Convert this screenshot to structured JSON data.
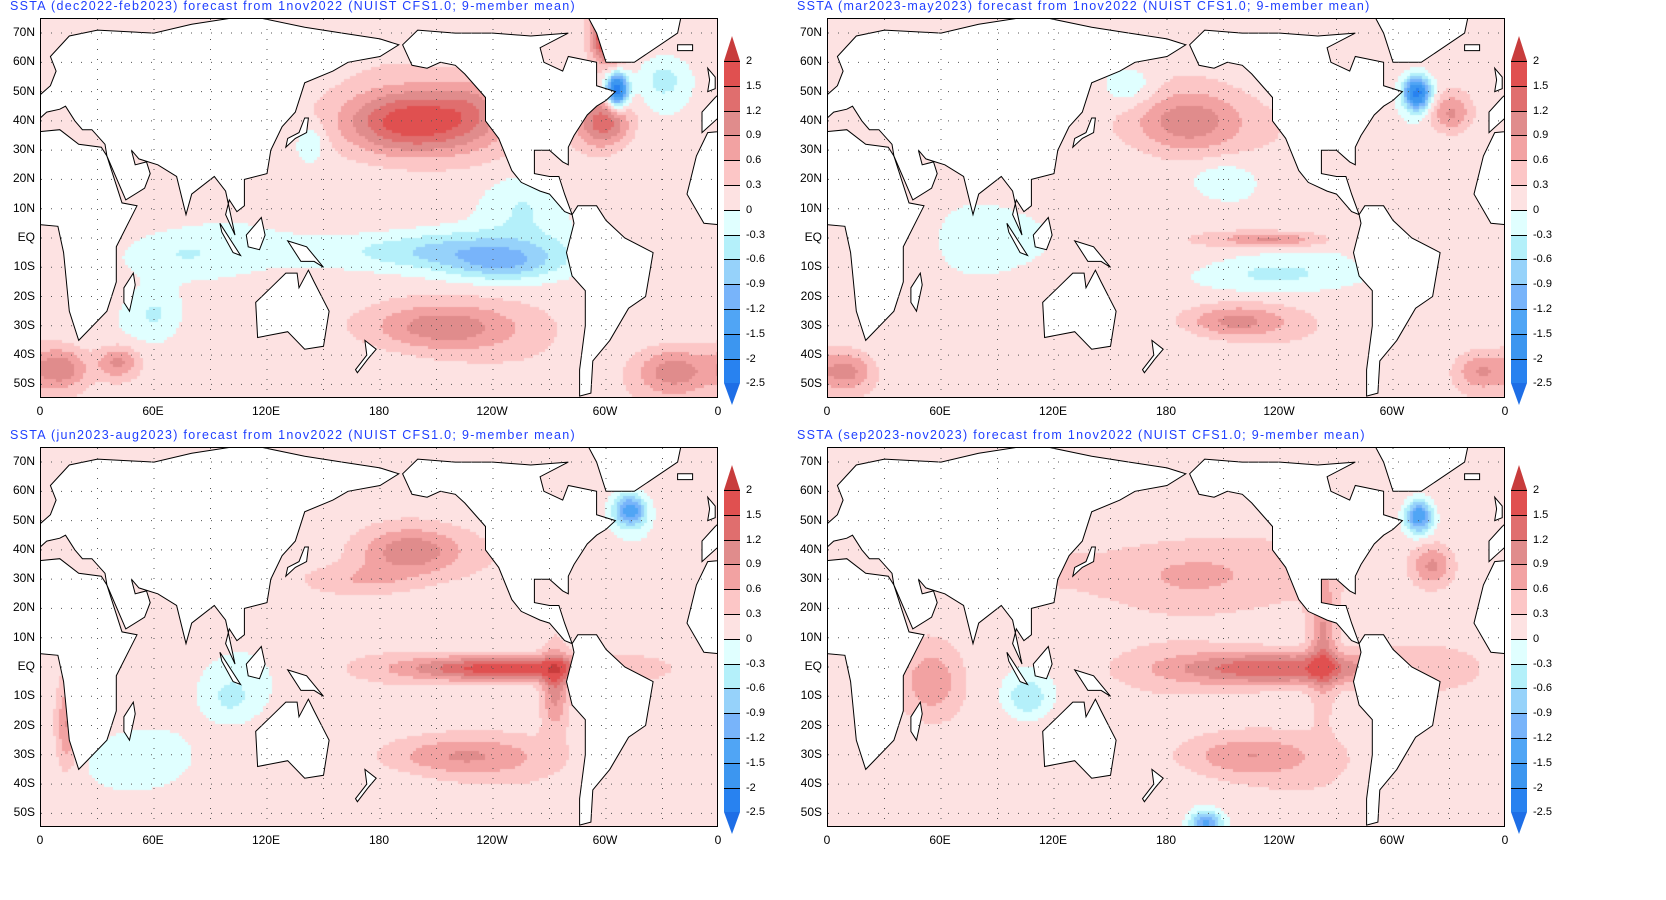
{
  "figure": {
    "panels": [
      {
        "title": "SSTA (dec2022-feb2023) forecast from 1nov2022 (NUIST CFS1.0; 9-member mean)",
        "base": 0.15,
        "anomaly_centers": [
          {
            "lon": 195,
            "lat": 40,
            "lon_spread": 25,
            "lat_spread": 8,
            "value": 1.7
          },
          {
            "lon": 228,
            "lat": 45,
            "lon_spread": 14,
            "lat_spread": 8,
            "value": 0.5
          },
          {
            "lon": 215,
            "lat": -4,
            "lon_spread": 45,
            "lat_spread": 5,
            "value": -0.9
          },
          {
            "lon": 245,
            "lat": -9,
            "lon_spread": 20,
            "lat_spread": 4,
            "value": -0.6
          },
          {
            "lon": 210,
            "lat": -30,
            "lon_spread": 28,
            "lat_spread": 6,
            "value": 1.0
          },
          {
            "lon": 298,
            "lat": 40,
            "lon_spread": 10,
            "lat_spread": 6,
            "value": 1.3
          },
          {
            "lon": 305,
            "lat": 51,
            "lon_spread": 4,
            "lat_spread": 4,
            "value": -2.6
          },
          {
            "lon": 301,
            "lat": 70,
            "lon_spread": 6,
            "lat_spread": 6,
            "value": 2.4
          },
          {
            "lon": 70,
            "lat": -5,
            "lon_spread": 25,
            "lat_spread": 6,
            "value": -0.45
          },
          {
            "lon": 60,
            "lat": -25,
            "lon_spread": 10,
            "lat_spread": 6,
            "value": -0.45
          },
          {
            "lon": 10,
            "lat": -44,
            "lon_spread": 10,
            "lat_spread": 5,
            "value": 1.0
          },
          {
            "lon": 40,
            "lat": -42,
            "lon_spread": 8,
            "lat_spread": 4,
            "value": 0.9
          },
          {
            "lon": 335,
            "lat": -45,
            "lon_spread": 15,
            "lat_spread": 6,
            "value": 1.0
          },
          {
            "lon": 142,
            "lat": 33,
            "lon_spread": 6,
            "lat_spread": 5,
            "value": -0.5
          },
          {
            "lon": 255,
            "lat": 12,
            "lon_spread": 15,
            "lat_spread": 8,
            "value": -0.4
          },
          {
            "lon": 330,
            "lat": 55,
            "lon_spread": 10,
            "lat_spread": 6,
            "value": -0.6
          }
        ]
      },
      {
        "title": "SSTA (mar2023-may2023) forecast from 1nov2022 (NUIST CFS1.0; 9-member mean)",
        "base": 0.12,
        "anomaly_centers": [
          {
            "lon": 190,
            "lat": 40,
            "lon_spread": 22,
            "lat_spread": 8,
            "value": 1.1
          },
          {
            "lon": 312,
            "lat": 50,
            "lon_spread": 5,
            "lat_spread": 4,
            "value": -2.3
          },
          {
            "lon": 330,
            "lat": 43,
            "lon_spread": 8,
            "lat_spread": 5,
            "value": 0.9
          },
          {
            "lon": 215,
            "lat": -28,
            "lon_spread": 20,
            "lat_spread": 4,
            "value": 0.9
          },
          {
            "lon": 235,
            "lat": 0,
            "lon_spread": 20,
            "lat_spread": 2,
            "value": 0.9
          },
          {
            "lon": 235,
            "lat": -12,
            "lon_spread": 30,
            "lat_spread": 4,
            "value": -0.45
          },
          {
            "lon": 75,
            "lat": 0,
            "lon_spread": 15,
            "lat_spread": 8,
            "value": -0.35
          },
          {
            "lon": 10,
            "lat": -45,
            "lon_spread": 10,
            "lat_spread": 5,
            "value": 0.9
          },
          {
            "lon": 345,
            "lat": -45,
            "lon_spread": 10,
            "lat_spread": 5,
            "value": 0.8
          },
          {
            "lon": 210,
            "lat": 20,
            "lon_spread": 12,
            "lat_spread": 5,
            "value": -0.35
          },
          {
            "lon": 160,
            "lat": 52,
            "lon_spread": 10,
            "lat_spread": 5,
            "value": -0.4
          }
        ]
      },
      {
        "title": "SSTA (jun2023-aug2023) forecast from 1nov2022 (NUIST CFS1.0; 9-member mean)",
        "base": 0.12,
        "anomaly_centers": [
          {
            "lon": 245,
            "lat": 0,
            "lon_spread": 35,
            "lat_spread": 3,
            "value": 1.7
          },
          {
            "lon": 272,
            "lat": -6,
            "lon_spread": 5,
            "lat_spread": 10,
            "value": 1.0
          },
          {
            "lon": 195,
            "lat": 40,
            "lon_spread": 20,
            "lat_spread": 6,
            "value": 1.1
          },
          {
            "lon": 170,
            "lat": 30,
            "lon_spread": 20,
            "lat_spread": 4,
            "value": 0.5
          },
          {
            "lon": 312,
            "lat": 54,
            "lon_spread": 6,
            "lat_spread": 4,
            "value": -1.6
          },
          {
            "lon": 220,
            "lat": -30,
            "lon_spread": 30,
            "lat_spread": 5,
            "value": 0.8
          },
          {
            "lon": 100,
            "lat": -10,
            "lon_spread": 10,
            "lat_spread": 6,
            "value": -0.45
          },
          {
            "lon": 13,
            "lat": -20,
            "lon_spread": 4,
            "lat_spread": 10,
            "value": 0.8
          },
          {
            "lon": 60,
            "lat": -30,
            "lon_spread": 15,
            "lat_spread": 6,
            "value": -0.35
          }
        ]
      },
      {
        "title": "SSTA (sep2023-nov2023) forecast from 1nov2022 (NUIST CFS1.0; 9-member mean)",
        "base": 0.18,
        "anomaly_centers": [
          {
            "lon": 240,
            "lat": 0,
            "lon_spread": 40,
            "lat_spread": 4,
            "value": 1.4
          },
          {
            "lon": 262,
            "lat": 10,
            "lon_spread": 5,
            "lat_spread": 15,
            "value": 0.8
          },
          {
            "lon": 190,
            "lat": 32,
            "lon_spread": 30,
            "lat_spread": 8,
            "value": 0.6
          },
          {
            "lon": 313,
            "lat": 52,
            "lon_spread": 5,
            "lat_spread": 4,
            "value": -1.7
          },
          {
            "lon": 320,
            "lat": 35,
            "lon_spread": 8,
            "lat_spread": 5,
            "value": 0.9
          },
          {
            "lon": 220,
            "lat": -30,
            "lon_spread": 25,
            "lat_spread": 5,
            "value": 0.7
          },
          {
            "lon": 55,
            "lat": -5,
            "lon_spread": 10,
            "lat_spread": 8,
            "value": 0.6
          },
          {
            "lon": 105,
            "lat": -10,
            "lon_spread": 8,
            "lat_spread": 5,
            "value": -0.7
          },
          {
            "lon": 200,
            "lat": -53,
            "lon_spread": 6,
            "lat_spread": 3,
            "value": -1.5
          }
        ]
      }
    ],
    "lat_labels": [
      "70N",
      "60N",
      "50N",
      "40N",
      "30N",
      "20N",
      "10N",
      "EQ",
      "10S",
      "20S",
      "30S",
      "40S",
      "50S"
    ],
    "lat_values": [
      70,
      60,
      50,
      40,
      30,
      20,
      10,
      0,
      -10,
      -20,
      -30,
      -40,
      -50
    ],
    "lon_labels": [
      "0",
      "60E",
      "120E",
      "180",
      "120W",
      "60W",
      "0"
    ],
    "lon_values": [
      0,
      60,
      120,
      180,
      240,
      300,
      360
    ],
    "colorbar": {
      "labels": [
        "2",
        "1.5",
        "1.2",
        "0.9",
        "0.6",
        "0.3",
        "0",
        "-0.3",
        "-0.6",
        "-0.9",
        "-1.2",
        "-1.5",
        "-2",
        "-2.5"
      ],
      "levels": [
        2,
        1.5,
        1.2,
        0.9,
        0.6,
        0.3,
        0,
        -0.3,
        -0.6,
        -0.9,
        -1.2,
        -1.5,
        -2,
        -2.5
      ],
      "colors": [
        "#c83c3c",
        "#e05050",
        "#e06e6e",
        "#e08c8c",
        "#f2a2a2",
        "#fcc6c6",
        "#fde2e2",
        "#e0ffff",
        "#b4f0fa",
        "#96d2fa",
        "#78b4fa",
        "#50a5f5",
        "#3c96f0",
        "#2882f0",
        "#1e6ee6"
      ]
    }
  }
}
